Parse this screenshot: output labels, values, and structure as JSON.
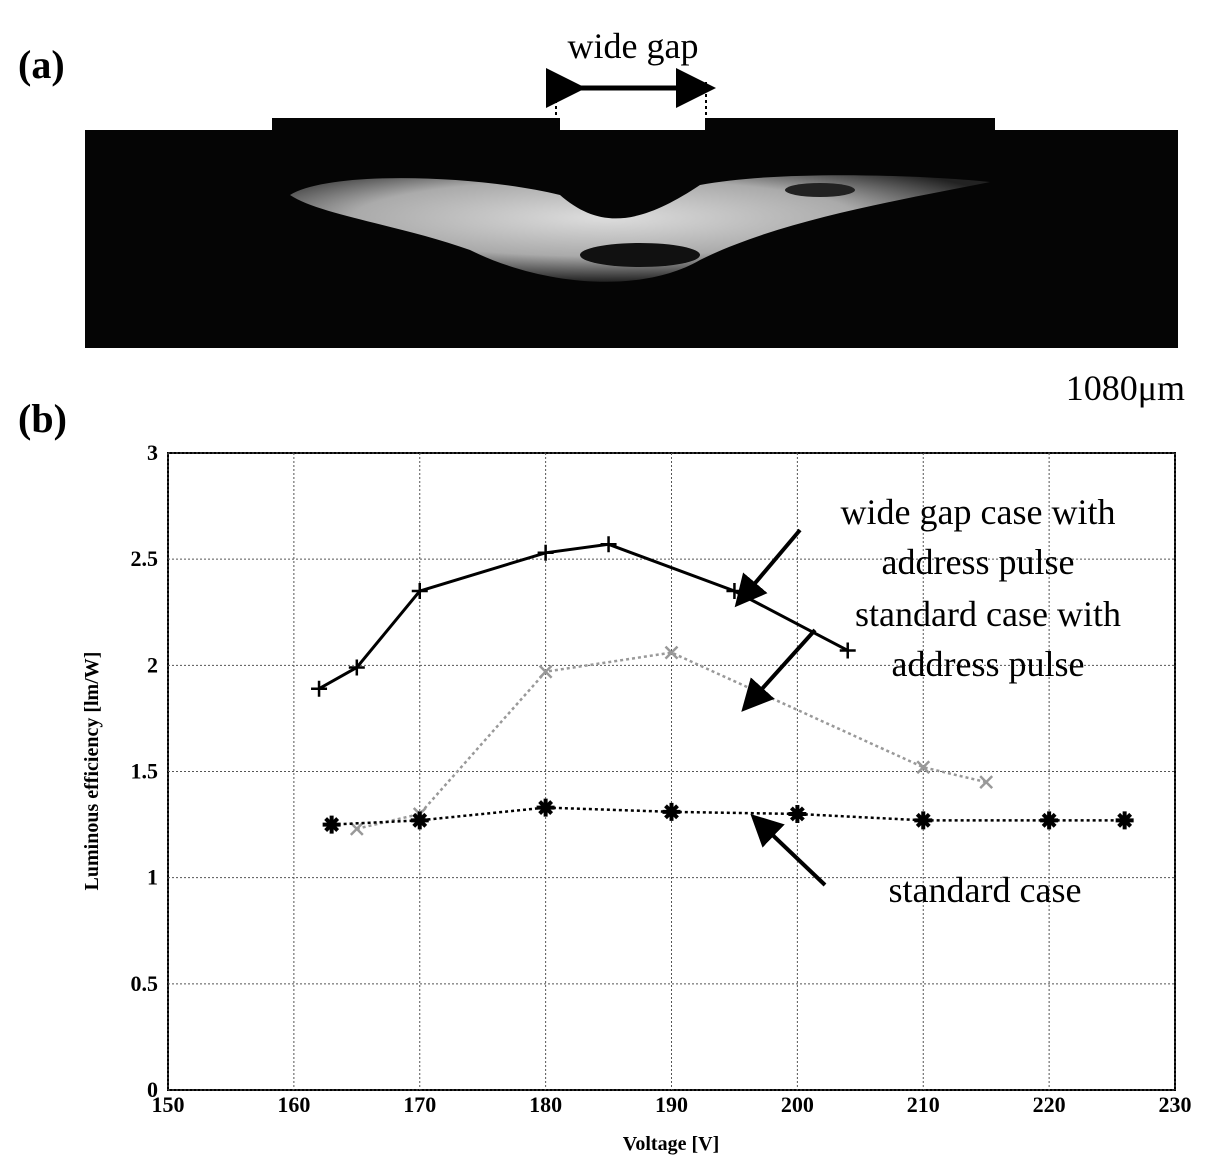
{
  "panel_a": {
    "label": "(a)",
    "gap_label": "wide gap",
    "scale_label": "1080μm"
  },
  "panel_b_label": "(b)",
  "chart_data": {
    "type": "line",
    "x_label": "Voltage [V]",
    "y_label": "Luminous efficiency [lm/W]",
    "xlim": [
      150,
      230
    ],
    "xticks": [
      150,
      160,
      170,
      180,
      190,
      200,
      210,
      220,
      230
    ],
    "ylim": [
      0,
      3
    ],
    "yticks": [
      0,
      0.5,
      1,
      1.5,
      2,
      2.5,
      3
    ],
    "grid": true,
    "series": [
      {
        "color": "#000000",
        "marker": "plus",
        "dash": "solid",
        "x": [
          162,
          165,
          170,
          180,
          185,
          195,
          204
        ],
        "values": [
          1.89,
          1.99,
          2.35,
          2.53,
          2.57,
          2.35,
          2.07
        ]
      },
      {
        "color": "#999999",
        "marker": "x",
        "dash": "dotted",
        "x": [
          165,
          170,
          180,
          190,
          210,
          215
        ],
        "values": [
          1.23,
          1.3,
          1.97,
          2.06,
          1.52,
          1.45
        ]
      },
      {
        "color": "#000000",
        "marker": "asterisk",
        "dash": "dotted",
        "x": [
          163,
          170,
          180,
          190,
          200,
          210,
          220,
          226
        ],
        "values": [
          1.25,
          1.27,
          1.33,
          1.31,
          1.3,
          1.27,
          1.27,
          1.27
        ]
      }
    ],
    "annotations": [
      {
        "lines": [
          "wide gap case with",
          "address pulse"
        ]
      },
      {
        "lines": [
          "standard case with",
          "address pulse"
        ]
      },
      {
        "lines": [
          "standard case"
        ]
      }
    ]
  }
}
